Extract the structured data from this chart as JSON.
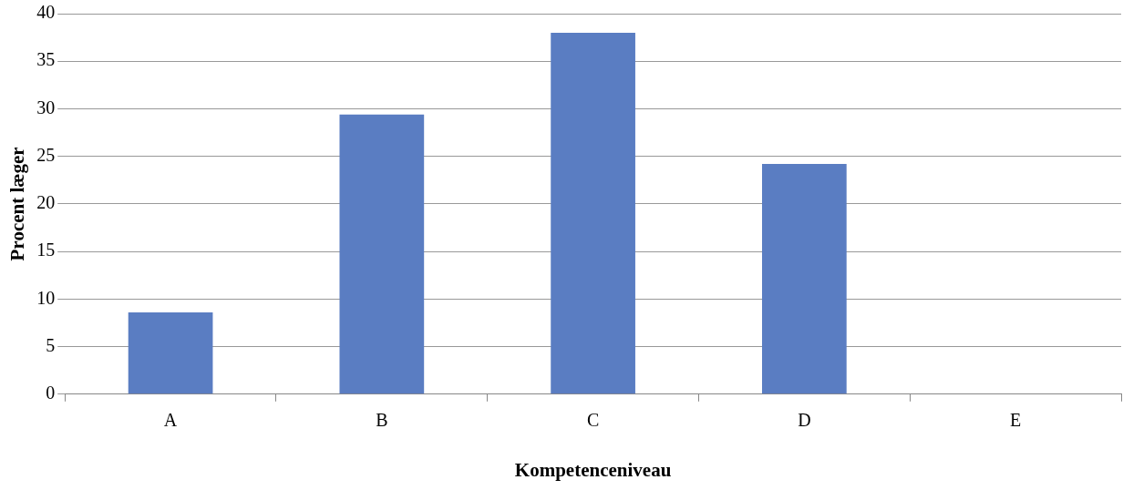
{
  "chart_data": {
    "type": "bar",
    "xlabel": "Kompetenceniveau",
    "ylabel": "Procent læger",
    "categories": [
      "A",
      "B",
      "C",
      "D",
      "E"
    ],
    "values": [
      8.6,
      29.4,
      38,
      24.2,
      0
    ],
    "color": "#5a7dc2",
    "ylim": [
      0,
      40
    ],
    "yticks": [
      0,
      5,
      10,
      15,
      20,
      25,
      30,
      35,
      40
    ],
    "grid": "y",
    "legend": false
  }
}
